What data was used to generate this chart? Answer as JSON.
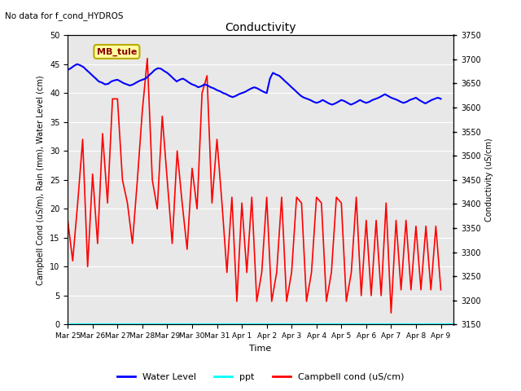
{
  "title": "Conductivity",
  "top_left_text": "No data for f_cond_HYDROS",
  "xlabel": "Time",
  "ylabel_left": "Campbell Cond (uS/m), Rain (mm), Water Level (cm)",
  "ylabel_right": "Conductivity (uS/cm)",
  "xlim": [
    0,
    15.5
  ],
  "ylim_left": [
    0,
    50
  ],
  "ylim_right": [
    3150,
    3750
  ],
  "x_tick_labels": [
    "Mar 25",
    "Mar 26",
    "Mar 27",
    "Mar 28",
    "Mar 29",
    "Mar 30",
    "Mar 31",
    "Apr 1",
    "Apr 2",
    "Apr 3",
    "Apr 4",
    "Apr 5",
    "Apr 6",
    "Apr 7",
    "Apr 8",
    "Apr 9"
  ],
  "x_tick_positions": [
    0,
    1,
    2,
    3,
    4,
    5,
    6,
    7,
    8,
    9,
    10,
    11,
    12,
    13,
    14,
    15
  ],
  "legend_labels": [
    "Water Level",
    "ppt",
    "Campbell cond (uS/cm)"
  ],
  "legend_colors": [
    "blue",
    "cyan",
    "red"
  ],
  "box_label": "MB_tule",
  "box_facecolor": "#FFFFA0",
  "box_edgecolor": "#BBAA00",
  "background_color": "#E8E8E8",
  "water_level_x": [
    0.0,
    0.13,
    0.25,
    0.38,
    0.5,
    0.63,
    0.75,
    0.88,
    1.0,
    1.13,
    1.25,
    1.38,
    1.5,
    1.63,
    1.75,
    1.88,
    2.0,
    2.13,
    2.25,
    2.38,
    2.5,
    2.63,
    2.75,
    2.88,
    3.0,
    3.13,
    3.25,
    3.38,
    3.5,
    3.63,
    3.75,
    3.88,
    4.0,
    4.13,
    4.25,
    4.38,
    4.5,
    4.63,
    4.75,
    4.88,
    5.0,
    5.13,
    5.25,
    5.38,
    5.5,
    5.63,
    5.75,
    5.88,
    6.0,
    6.13,
    6.25,
    6.38,
    6.5,
    6.63,
    6.75,
    6.88,
    7.0,
    7.13,
    7.25,
    7.38,
    7.5,
    7.63,
    7.75,
    7.88,
    8.0,
    8.13,
    8.25,
    8.38,
    8.5,
    8.63,
    8.75,
    8.88,
    9.0,
    9.13,
    9.25,
    9.38,
    9.5,
    9.63,
    9.75,
    9.88,
    10.0,
    10.13,
    10.25,
    10.38,
    10.5,
    10.63,
    10.75,
    10.88,
    11.0,
    11.13,
    11.25,
    11.38,
    11.5,
    11.63,
    11.75,
    11.88,
    12.0,
    12.13,
    12.25,
    12.38,
    12.5,
    12.63,
    12.75,
    12.88,
    13.0,
    13.13,
    13.25,
    13.38,
    13.5,
    13.63,
    13.75,
    13.88,
    14.0,
    14.13,
    14.25,
    14.38,
    14.5,
    14.63,
    14.75,
    14.88,
    15.0
  ],
  "water_level_y": [
    44.0,
    44.3,
    44.7,
    45.0,
    44.8,
    44.5,
    44.0,
    43.5,
    43.0,
    42.5,
    42.0,
    41.8,
    41.5,
    41.6,
    42.0,
    42.2,
    42.3,
    42.0,
    41.7,
    41.5,
    41.3,
    41.5,
    41.8,
    42.1,
    42.3,
    42.5,
    43.0,
    43.5,
    44.0,
    44.3,
    44.2,
    43.8,
    43.5,
    43.0,
    42.5,
    42.0,
    42.3,
    42.5,
    42.2,
    41.8,
    41.5,
    41.3,
    41.0,
    41.2,
    41.5,
    41.3,
    41.0,
    40.8,
    40.5,
    40.3,
    40.0,
    39.8,
    39.5,
    39.3,
    39.5,
    39.8,
    40.0,
    40.2,
    40.5,
    40.8,
    41.0,
    40.8,
    40.5,
    40.2,
    40.0,
    42.5,
    43.5,
    43.2,
    43.0,
    42.5,
    42.0,
    41.5,
    41.0,
    40.5,
    40.0,
    39.5,
    39.2,
    39.0,
    38.8,
    38.5,
    38.3,
    38.5,
    38.8,
    38.5,
    38.2,
    38.0,
    38.2,
    38.5,
    38.8,
    38.6,
    38.3,
    38.0,
    38.2,
    38.5,
    38.8,
    38.5,
    38.3,
    38.5,
    38.8,
    39.0,
    39.2,
    39.5,
    39.8,
    39.5,
    39.2,
    39.0,
    38.8,
    38.5,
    38.3,
    38.5,
    38.8,
    39.0,
    39.2,
    38.8,
    38.5,
    38.2,
    38.5,
    38.8,
    39.0,
    39.2,
    39.0
  ],
  "campbell_x": [
    0.0,
    0.2,
    0.4,
    0.6,
    0.8,
    1.0,
    1.2,
    1.4,
    1.6,
    1.8,
    2.0,
    2.2,
    2.4,
    2.6,
    2.8,
    3.0,
    3.2,
    3.4,
    3.6,
    3.8,
    4.0,
    4.2,
    4.4,
    4.6,
    4.8,
    5.0,
    5.2,
    5.4,
    5.6,
    5.8,
    6.0,
    6.2,
    6.4,
    6.6,
    6.8,
    7.0,
    7.2,
    7.4,
    7.6,
    7.8,
    8.0,
    8.2,
    8.4,
    8.6,
    8.8,
    9.0,
    9.2,
    9.4,
    9.6,
    9.8,
    10.0,
    10.2,
    10.4,
    10.6,
    10.8,
    11.0,
    11.2,
    11.4,
    11.6,
    11.8,
    12.0,
    12.2,
    12.4,
    12.6,
    12.8,
    13.0,
    13.2,
    13.4,
    13.6,
    13.8,
    14.0,
    14.2,
    14.4,
    14.6,
    14.8,
    15.0
  ],
  "campbell_y": [
    18,
    11,
    21,
    32,
    10,
    26,
    14,
    33,
    21,
    39,
    39,
    25,
    21,
    14,
    25,
    37,
    46,
    25,
    20,
    36,
    25,
    14,
    30,
    21,
    13,
    27,
    20,
    40,
    43,
    21,
    32,
    21,
    9,
    22,
    4,
    21,
    9,
    22,
    4,
    9,
    22,
    4,
    9,
    22,
    4,
    9,
    22,
    21,
    4,
    9,
    22,
    21,
    4,
    9,
    22,
    21,
    4,
    9,
    22,
    5,
    18,
    5,
    18,
    5,
    21,
    2,
    18,
    6,
    18,
    6,
    17,
    6,
    17,
    6,
    17,
    6
  ],
  "ppt_y": 0.0
}
